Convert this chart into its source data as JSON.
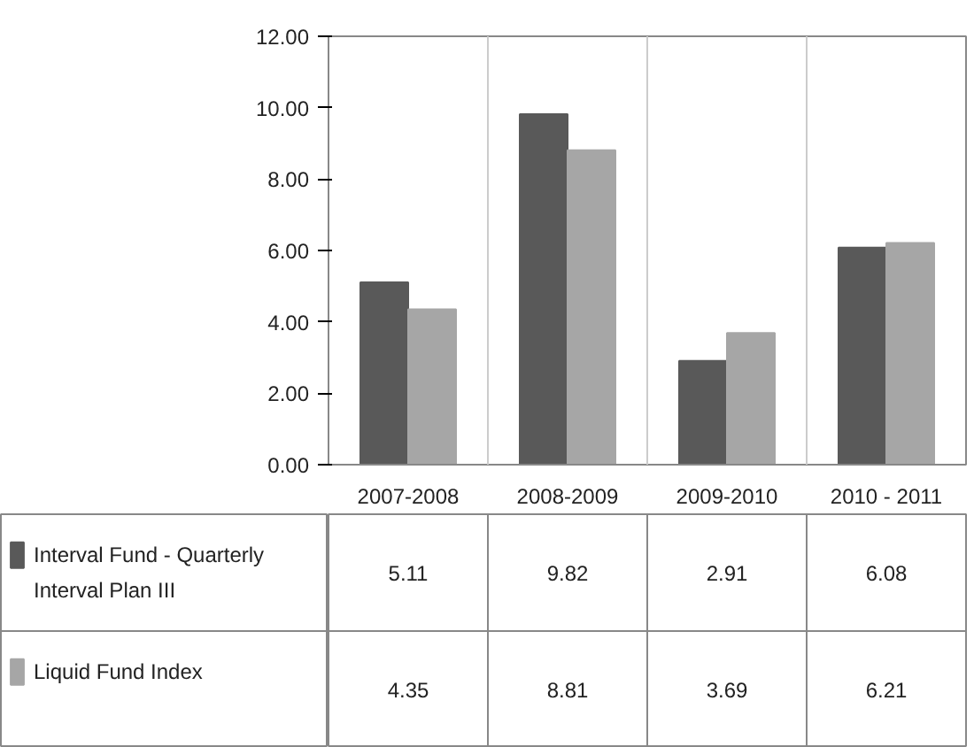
{
  "chart_data": {
    "type": "bar",
    "categories": [
      "2007-2008",
      "2008-2009",
      "2009-2010",
      "2010 - 2011"
    ],
    "series": [
      {
        "name": "Interval Fund - Quarterly Interval Plan III",
        "color": "#595959",
        "values": [
          5.11,
          9.82,
          2.91,
          6.08
        ]
      },
      {
        "name": "Liquid Fund Index",
        "color": "#a6a6a6",
        "values": [
          4.35,
          8.81,
          3.69,
          6.21
        ]
      }
    ],
    "ylim": [
      0,
      12
    ],
    "yticks": [
      {
        "value": 0,
        "label": "0.00"
      },
      {
        "value": 2,
        "label": "2.00"
      },
      {
        "value": 4,
        "label": "4.00"
      },
      {
        "value": 6,
        "label": "6.00"
      },
      {
        "value": 8,
        "label": "8.00"
      },
      {
        "value": 10,
        "label": "10.00"
      },
      {
        "value": 12,
        "label": "12.00"
      }
    ],
    "grid": false,
    "legend": "bottom left",
    "data_labels": true
  }
}
